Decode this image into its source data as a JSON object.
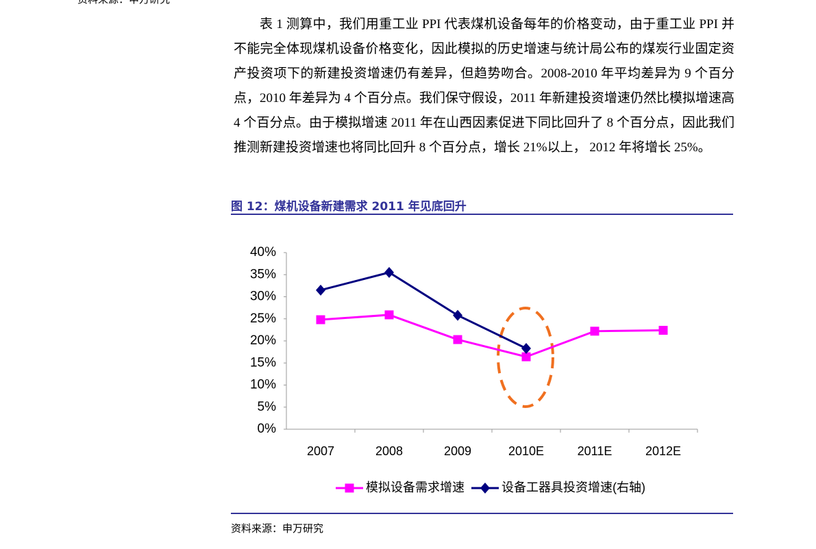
{
  "top_source": "资料来源：申万研究",
  "body": {
    "paragraph": "表 1 测算中，我们用重工业 PPI 代表煤机设备每年的价格变动，由于重工业 PPI 并不能完全体现煤机设备价格变化，因此模拟的历史增速与统计局公布的煤炭行业固定资产投资项下的新建投资增速仍有差异，但趋势吻合。2008-2010 年平均差异为 9 个百分点，2010 年差异为 4 个百分点。我们保守假设，2011 年新建投资增速仍然比模拟增速高 4 个百分点。由于模拟增速 2011 年在山西因素促进下同比回升了 8 个百分点，因此我们推测新建投资增速也将同比回升 8 个百分点，增长 21%以上， 2012 年将增长 25%。"
  },
  "figure": {
    "title": "图 12：煤机设备新建需求 2011 年见底回升",
    "source": "资料来源：申万研究"
  },
  "chart_data": {
    "type": "line",
    "categories": [
      "2007",
      "2008",
      "2009",
      "2010E",
      "2011E",
      "2012E"
    ],
    "series": [
      {
        "name": "模拟设备需求增速",
        "color": "#ff00ff",
        "marker": "square",
        "values": [
          24.8,
          25.9,
          20.3,
          16.4,
          22.2,
          22.4
        ]
      },
      {
        "name": "设备工器具投资增速(右轴)",
        "color": "#000080",
        "marker": "diamond",
        "values": [
          31.5,
          35.5,
          25.8,
          18.3,
          null,
          null
        ]
      }
    ],
    "ylim": [
      0,
      40
    ],
    "yticks": [
      {
        "value": 0,
        "label": "0%"
      },
      {
        "value": 5,
        "label": "5%"
      },
      {
        "value": 10,
        "label": "10%"
      },
      {
        "value": 15,
        "label": "15%"
      },
      {
        "value": 20,
        "label": "20%"
      },
      {
        "value": 25,
        "label": "25%"
      },
      {
        "value": 30,
        "label": "30%"
      },
      {
        "value": 35,
        "label": "35%"
      },
      {
        "value": 40,
        "label": "40%"
      }
    ],
    "grid": false
  }
}
